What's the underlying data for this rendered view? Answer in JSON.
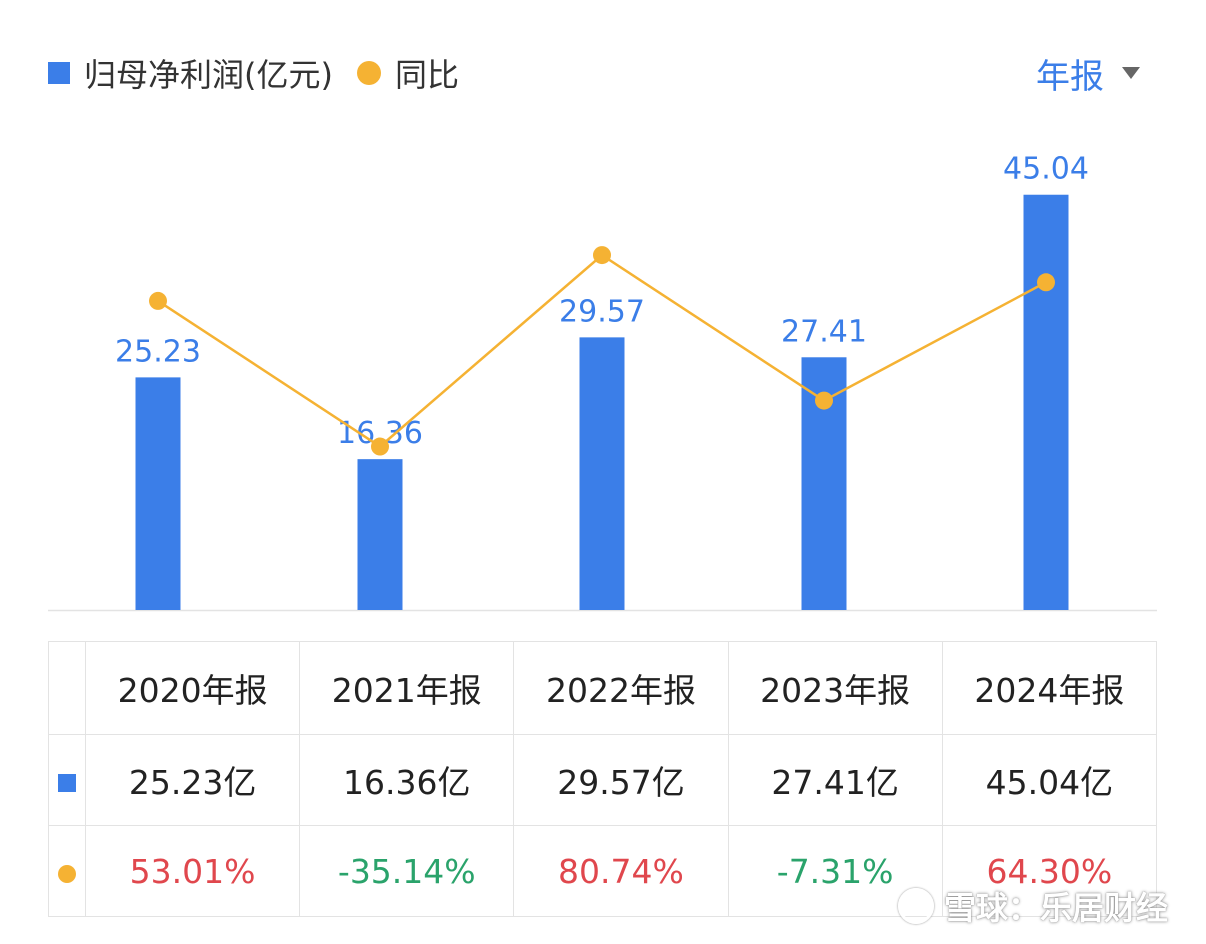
{
  "legend": {
    "bar_label": "归母净利润(亿元)",
    "line_label": "同比"
  },
  "period": {
    "label": "年报"
  },
  "colors": {
    "bar": "#3b7ee8",
    "line": "#f5b233",
    "positive": "#e0474d",
    "negative": "#2aa36b"
  },
  "chart_data": {
    "type": "bar",
    "categories": [
      "2020年报",
      "2021年报",
      "2022年报",
      "2023年报",
      "2024年报"
    ],
    "series": [
      {
        "name": "归母净利润(亿元)",
        "type": "bar",
        "values": [
          25.23,
          16.36,
          29.57,
          27.41,
          45.04
        ],
        "labels": [
          "25.23",
          "16.36",
          "29.57",
          "27.41",
          "45.04"
        ]
      },
      {
        "name": "同比",
        "type": "line",
        "values": [
          53.01,
          -35.14,
          80.74,
          -7.31,
          64.3
        ]
      }
    ]
  },
  "table": {
    "headers": [
      "2020年报",
      "2021年报",
      "2022年报",
      "2023年报",
      "2024年报"
    ],
    "profit": [
      "25.23亿",
      "16.36亿",
      "29.57亿",
      "27.41亿",
      "45.04亿"
    ],
    "yoy": [
      "53.01%",
      "-35.14%",
      "80.74%",
      "-7.31%",
      "64.30%"
    ]
  },
  "watermark": "雪球：乐居财经"
}
